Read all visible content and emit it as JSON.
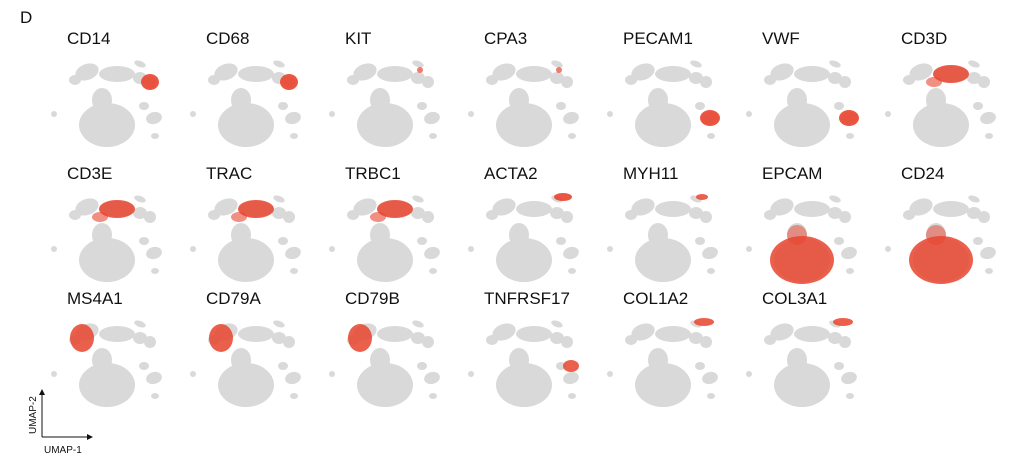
{
  "panel_label": "D",
  "axes": {
    "x_label": "UMAP-1",
    "y_label": "UMAP-2"
  },
  "colors": {
    "background_cells": "#d9d9d9",
    "expression_high": "#e8442e"
  },
  "chart_data": {
    "type": "scatter",
    "description_type": "UMAP feature plots",
    "layout": "3 rows x 7 columns",
    "genes": [
      {
        "gene": "CD14",
        "expressed_in": "myeloid cluster (upper right)"
      },
      {
        "gene": "CD68",
        "expressed_in": "myeloid cluster (upper right)"
      },
      {
        "gene": "KIT",
        "expressed_in": "mast cell cluster (sparse)"
      },
      {
        "gene": "CPA3",
        "expressed_in": "mast cell cluster (sparse)"
      },
      {
        "gene": "PECAM1",
        "expressed_in": "endothelial cluster (right)"
      },
      {
        "gene": "VWF",
        "expressed_in": "endothelial cluster (right)"
      },
      {
        "gene": "CD3D",
        "expressed_in": "T cell cluster (top)"
      },
      {
        "gene": "CD3E",
        "expressed_in": "T cell cluster (top)"
      },
      {
        "gene": "TRAC",
        "expressed_in": "T cell cluster (top)"
      },
      {
        "gene": "TRBC1",
        "expressed_in": "T cell cluster (top)"
      },
      {
        "gene": "ACTA2",
        "expressed_in": "smooth muscle / fibroblast cluster"
      },
      {
        "gene": "MYH11",
        "expressed_in": "smooth muscle cluster"
      },
      {
        "gene": "EPCAM",
        "expressed_in": "epithelial cluster (large, bottom)"
      },
      {
        "gene": "CD24",
        "expressed_in": "epithelial cluster (large, bottom)"
      },
      {
        "gene": "MS4A1",
        "expressed_in": "B cell cluster (left)"
      },
      {
        "gene": "CD79A",
        "expressed_in": "B cell cluster (left)"
      },
      {
        "gene": "CD79B",
        "expressed_in": "B cell cluster (left)"
      },
      {
        "gene": "TNFRSF17",
        "expressed_in": "plasma cell cluster (right)"
      },
      {
        "gene": "COL1A2",
        "expressed_in": "fibroblast cluster (upper right)"
      },
      {
        "gene": "COL3A1",
        "expressed_in": "fibroblast cluster (upper right)"
      }
    ]
  }
}
